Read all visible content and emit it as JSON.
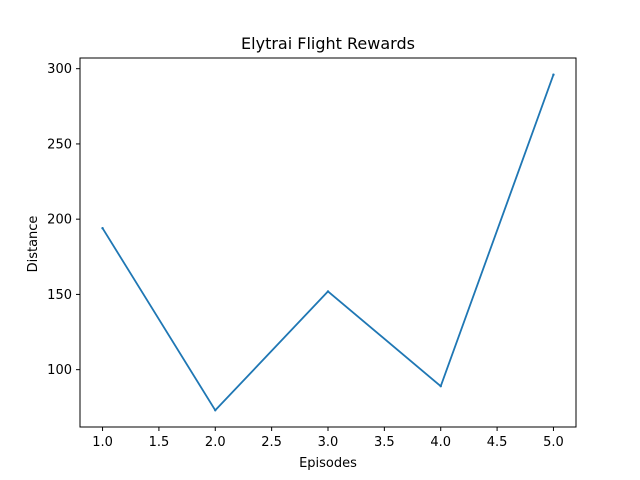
{
  "chart_data": {
    "type": "line",
    "title": "Elytrai Flight Rewards",
    "xlabel": "Episodes",
    "ylabel": "Distance",
    "x": [
      1.0,
      2.0,
      3.0,
      4.0,
      5.0
    ],
    "series": [
      {
        "values": [
          194,
          73,
          152,
          89,
          296
        ],
        "color": "#1f77b4"
      }
    ],
    "xlim": [
      0.8,
      5.2
    ],
    "ylim": [
      61.9,
      307.1
    ],
    "xticks": [
      1.0,
      1.5,
      2.0,
      2.5,
      3.0,
      3.5,
      4.0,
      4.5,
      5.0
    ],
    "xtick_labels": [
      "1.0",
      "1.5",
      "2.0",
      "2.5",
      "3.0",
      "3.5",
      "4.0",
      "4.5",
      "5.0"
    ],
    "yticks": [
      100,
      150,
      200,
      250,
      300
    ],
    "ytick_labels": [
      "100",
      "150",
      "200",
      "250",
      "300"
    ],
    "grid": false,
    "legend": false
  }
}
